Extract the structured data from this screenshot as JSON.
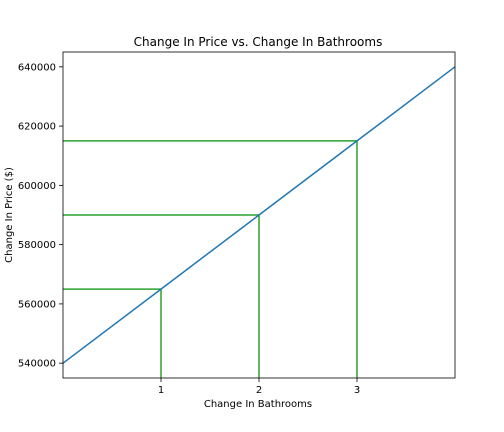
{
  "chart_data": {
    "type": "line",
    "title": "Change In Price vs. Change In Bathrooms",
    "xlabel": "Change In Bathrooms",
    "ylabel": "Change In Price ($)",
    "xlim": [
      0,
      4
    ],
    "ylim": [
      535000,
      645000
    ],
    "x_ticks": [
      1,
      2,
      3
    ],
    "y_ticks": [
      540000,
      560000,
      580000,
      600000,
      620000,
      640000
    ],
    "grid": false,
    "series": [
      {
        "color": "#1f77b4",
        "x": [
          0,
          1,
          2,
          3,
          4
        ],
        "y": [
          540000,
          565000,
          590000,
          615000,
          640000
        ]
      }
    ],
    "reference_lines": {
      "color": "#2ca02c",
      "points": [
        {
          "x": 1,
          "y": 565000
        },
        {
          "x": 2,
          "y": 590000
        },
        {
          "x": 3,
          "y": 615000
        }
      ]
    }
  }
}
